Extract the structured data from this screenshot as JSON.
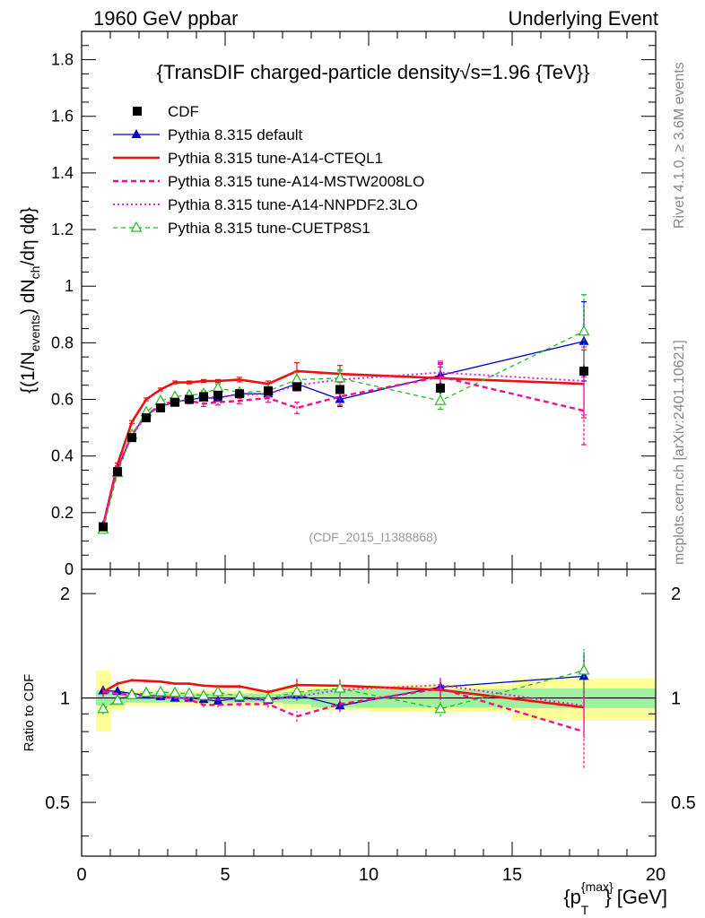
{
  "header": {
    "left": "1960 GeV ppbar",
    "right": "Underlying Event",
    "side_top": "Rivet 4.1.0, ≥ 3.6M events",
    "side_bottom": "mcplots.cern.ch [arXiv:2401.10621]"
  },
  "colors": {
    "cdf": "#000000",
    "default": "#0000cc",
    "cteql1": "#ee1111",
    "mstw": "#ee1188",
    "nnpdf": "#dd22dd",
    "cuetp": "#22bb22",
    "band_inner": "#a0f0a0",
    "band_outer": "#ffff99"
  },
  "chart_data": [
    {
      "type": "line",
      "title": "{TransDIF charged-particle density√s=1.96 {TeV}}",
      "ylabel_parts": [
        "{(1/N",
        "events",
        ") dN",
        "ch",
        "/dη dϕ}"
      ],
      "watermark": "(CDF_2015_I1388868)",
      "xlim": [
        0,
        20
      ],
      "ylim": [
        0,
        1.9
      ],
      "yticks": [
        "0",
        "0.2",
        "0.4",
        "0.6",
        "0.8",
        "1",
        "1.2",
        "1.4",
        "1.6",
        "1.8"
      ],
      "x": [
        0.75,
        1.25,
        1.75,
        2.25,
        2.75,
        3.25,
        3.75,
        4.25,
        4.75,
        5.5,
        6.5,
        7.5,
        9.0,
        12.5,
        17.5
      ],
      "x_edges": [
        [
          0.5,
          1.0
        ],
        [
          1.0,
          1.5
        ],
        [
          1.5,
          2.0
        ],
        [
          2.0,
          2.5
        ],
        [
          2.5,
          3.0
        ],
        [
          3.0,
          3.5
        ],
        [
          3.5,
          4.0
        ],
        [
          4.0,
          4.5
        ],
        [
          4.5,
          5.0
        ],
        [
          5.0,
          6.0
        ],
        [
          6.0,
          7.0
        ],
        [
          7.0,
          8.0
        ],
        [
          8.0,
          10.0
        ],
        [
          10.0,
          15.0
        ],
        [
          15.0,
          20.0
        ]
      ],
      "series": [
        {
          "key": "cdf",
          "name": "CDF",
          "values": [
            0.15,
            0.345,
            0.465,
            0.535,
            0.57,
            0.59,
            0.6,
            0.61,
            0.615,
            0.62,
            0.63,
            0.645,
            0.635,
            0.64,
            0.7
          ],
          "errors": [
            0.01,
            0.01,
            0.01,
            0.01,
            0.01,
            0.01,
            0.01,
            0.01,
            0.01,
            0.01,
            0.01,
            0.015,
            0.015,
            0.02,
            0.02
          ]
        },
        {
          "key": "default",
          "name": "Pythia 8.315 default",
          "values": [
            0.155,
            0.355,
            0.475,
            0.545,
            0.575,
            0.59,
            0.6,
            0.605,
            0.605,
            0.62,
            0.62,
            0.655,
            0.6,
            0.685,
            0.805
          ],
          "errors": [
            0.005,
            0.005,
            0.005,
            0.005,
            0.005,
            0.005,
            0.005,
            0.005,
            0.005,
            0.008,
            0.01,
            0.02,
            0.025,
            0.04,
            0.14
          ]
        },
        {
          "key": "cteql1",
          "name": "Pythia 8.315 tune-A14-CTEQL1",
          "values": [
            0.155,
            0.37,
            0.52,
            0.6,
            0.635,
            0.66,
            0.66,
            0.665,
            0.665,
            0.67,
            0.655,
            0.7,
            0.69,
            0.675,
            0.655
          ],
          "errors": [
            0.005,
            0.005,
            0.005,
            0.005,
            0.005,
            0.005,
            0.005,
            0.005,
            0.005,
            0.008,
            0.01,
            0.03,
            0.03,
            0.04,
            0.12
          ]
        },
        {
          "key": "mstw",
          "name": "Pythia 8.315 tune-A14-MSTW2008LO",
          "values": [
            0.155,
            0.355,
            0.475,
            0.545,
            0.58,
            0.595,
            0.595,
            0.585,
            0.59,
            0.595,
            0.605,
            0.57,
            0.61,
            0.68,
            0.56
          ],
          "errors": [
            0.005,
            0.005,
            0.005,
            0.005,
            0.005,
            0.005,
            0.01,
            0.01,
            0.01,
            0.01,
            0.015,
            0.02,
            0.03,
            0.05,
            0.12
          ]
        },
        {
          "key": "nnpdf",
          "name": "Pythia 8.315 tune-A14-NNPDF2.3LO",
          "values": [
            0.155,
            0.355,
            0.47,
            0.545,
            0.575,
            0.59,
            0.6,
            0.605,
            0.61,
            0.615,
            0.62,
            0.65,
            0.67,
            0.695,
            0.665
          ],
          "errors": [
            0.005,
            0.005,
            0.005,
            0.005,
            0.005,
            0.005,
            0.005,
            0.005,
            0.005,
            0.008,
            0.01,
            0.02,
            0.03,
            0.04,
            0.12
          ]
        },
        {
          "key": "cuetp",
          "name": "Pythia 8.315 tune-CUETP8S1",
          "values": [
            0.14,
            0.34,
            0.475,
            0.555,
            0.595,
            0.61,
            0.615,
            0.62,
            0.64,
            0.625,
            0.63,
            0.67,
            0.675,
            0.595,
            0.84
          ],
          "errors": [
            0.005,
            0.005,
            0.005,
            0.005,
            0.005,
            0.005,
            0.008,
            0.01,
            0.015,
            0.01,
            0.015,
            0.025,
            0.03,
            0.03,
            0.13
          ]
        }
      ]
    },
    {
      "type": "line",
      "title": "",
      "ylabel": "Ratio to CDF",
      "xlabel": "{p_T^{max}} [GeV]",
      "xlabel_parts": [
        "{p",
        "{max}",
        "T",
        "} [GeV]"
      ],
      "xlim": [
        0,
        20
      ],
      "ylim": [
        0.35,
        2.35
      ],
      "yscale": "log",
      "yticks": [
        "0.5",
        "1",
        "2"
      ],
      "xticks": [
        "0",
        "5",
        "10",
        "15",
        "20"
      ],
      "band_inner": [
        0.05,
        0.05,
        0.03,
        0.03,
        0.03,
        0.03,
        0.03,
        0.03,
        0.03,
        0.03,
        0.03,
        0.04,
        0.06,
        0.06,
        0.065
      ],
      "band_outer": [
        0.2,
        0.08,
        0.05,
        0.05,
        0.05,
        0.05,
        0.05,
        0.05,
        0.05,
        0.05,
        0.05,
        0.07,
        0.08,
        0.09,
        0.14
      ],
      "series": [
        {
          "key": "default",
          "values": [
            1.05,
            1.045,
            1.03,
            1.02,
            1.01,
            1.0,
            1.0,
            0.99,
            0.98,
            1.0,
            0.985,
            1.02,
            0.95,
            1.075,
            1.155
          ]
        },
        {
          "key": "cteql1",
          "values": [
            1.04,
            1.1,
            1.125,
            1.12,
            1.115,
            1.1,
            1.1,
            1.085,
            1.08,
            1.08,
            1.04,
            1.09,
            1.085,
            1.055,
            0.94
          ]
        },
        {
          "key": "mstw",
          "values": [
            1.04,
            1.03,
            1.02,
            1.015,
            1.01,
            1.005,
            0.99,
            0.955,
            0.955,
            0.96,
            0.96,
            0.885,
            0.96,
            1.065,
            0.8
          ]
        },
        {
          "key": "nnpdf",
          "values": [
            1.04,
            1.03,
            1.01,
            1.015,
            1.005,
            1.0,
            1.0,
            0.99,
            0.99,
            0.995,
            0.985,
            1.01,
            1.055,
            1.09,
            0.95
          ]
        },
        {
          "key": "cuetp",
          "values": [
            0.93,
            0.985,
            1.02,
            1.035,
            1.04,
            1.035,
            1.03,
            1.015,
            1.04,
            1.01,
            0.995,
            1.04,
            1.065,
            0.93,
            1.2
          ]
        }
      ]
    }
  ]
}
